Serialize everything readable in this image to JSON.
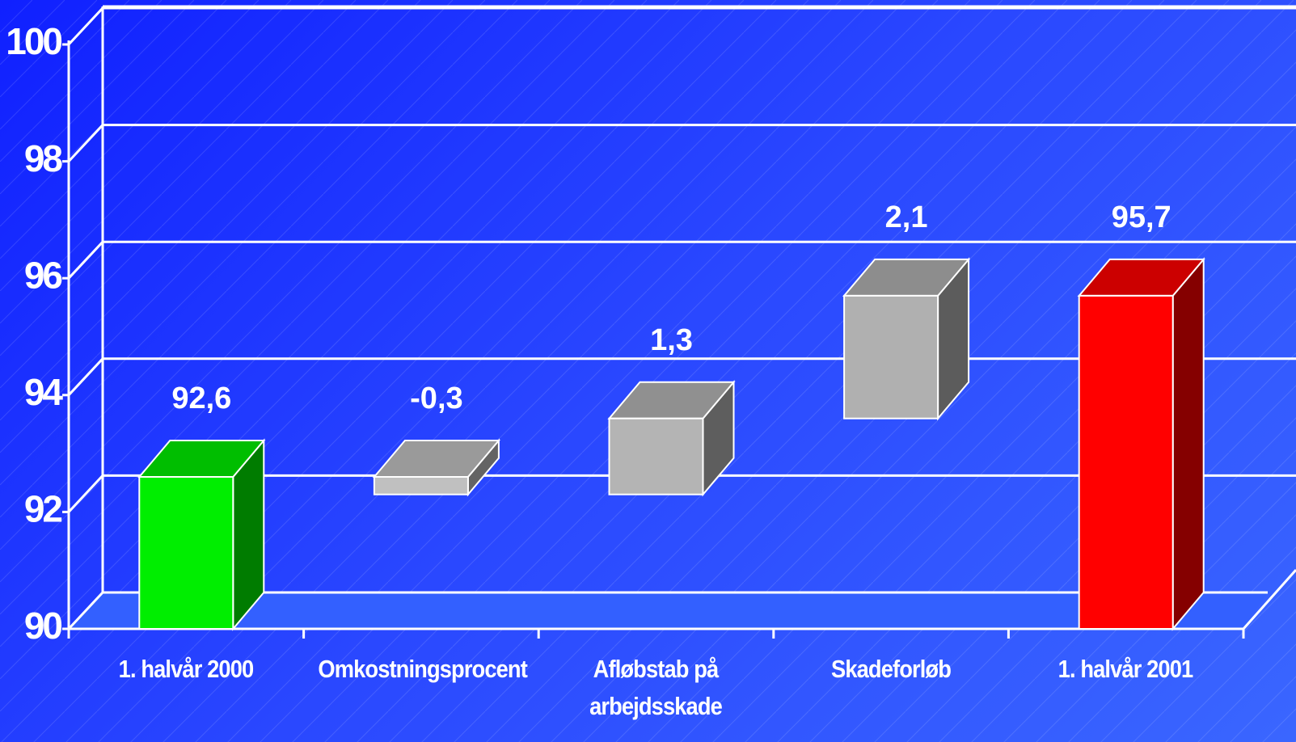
{
  "chart_data": {
    "type": "waterfall",
    "categories": [
      "1. halvår 2000",
      "Omkostningsprocent",
      "Afløbstab på arbejdsskade",
      "Skadeforløb",
      "1. halvår 2001"
    ],
    "values": [
      92.6,
      -0.3,
      1.3,
      2.1,
      95.7
    ],
    "value_labels": [
      "92,6",
      "-0,3",
      "1,3",
      "2,1",
      "95,7"
    ],
    "colors": [
      "#00ee00",
      "#c0c0c0",
      "#b4b4b4",
      "#b0b0b0",
      "#ff0000"
    ],
    "ylim": [
      90,
      100
    ],
    "yticks": [
      90,
      92,
      94,
      96,
      98,
      100
    ],
    "grid": true
  }
}
